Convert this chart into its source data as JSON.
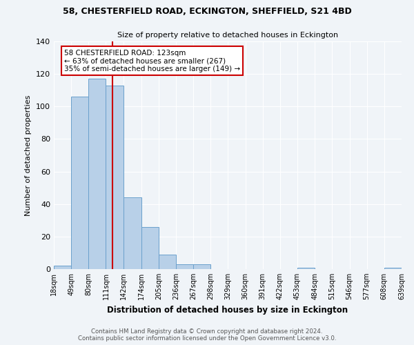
{
  "title": "58, CHESTERFIELD ROAD, ECKINGTON, SHEFFIELD, S21 4BD",
  "subtitle": "Size of property relative to detached houses in Eckington",
  "xlabel": "Distribution of detached houses by size in Eckington",
  "ylabel": "Number of detached properties",
  "bar_color": "#b8d0e8",
  "bar_edge_color": "#6aa0cc",
  "background_color": "#f0f4f8",
  "grid_color": "#ffffff",
  "bin_edges": [
    18,
    49,
    80,
    111,
    142,
    174,
    205,
    236,
    267,
    298,
    329,
    360,
    391,
    422,
    453,
    484,
    515,
    546,
    577,
    608,
    639
  ],
  "bin_labels": [
    "18sqm",
    "49sqm",
    "80sqm",
    "111sqm",
    "142sqm",
    "174sqm",
    "205sqm",
    "236sqm",
    "267sqm",
    "298sqm",
    "329sqm",
    "360sqm",
    "391sqm",
    "422sqm",
    "453sqm",
    "484sqm",
    "515sqm",
    "546sqm",
    "577sqm",
    "608sqm",
    "639sqm"
  ],
  "bar_heights": [
    2,
    106,
    117,
    113,
    44,
    26,
    9,
    3,
    3,
    0,
    0,
    0,
    0,
    0,
    1,
    0,
    0,
    0,
    0,
    1
  ],
  "red_line_x": 123,
  "annotation_line1": "58 CHESTERFIELD ROAD: 123sqm",
  "annotation_line2": "← 63% of detached houses are smaller (267)",
  "annotation_line3": "35% of semi-detached houses are larger (149) →",
  "annotation_box_color": "#ffffff",
  "annotation_box_edge": "#cc0000",
  "red_line_color": "#cc0000",
  "footer_line1": "Contains HM Land Registry data © Crown copyright and database right 2024.",
  "footer_line2": "Contains public sector information licensed under the Open Government Licence v3.0.",
  "ylim": [
    0,
    140
  ],
  "yticks": [
    0,
    20,
    40,
    60,
    80,
    100,
    120,
    140
  ]
}
